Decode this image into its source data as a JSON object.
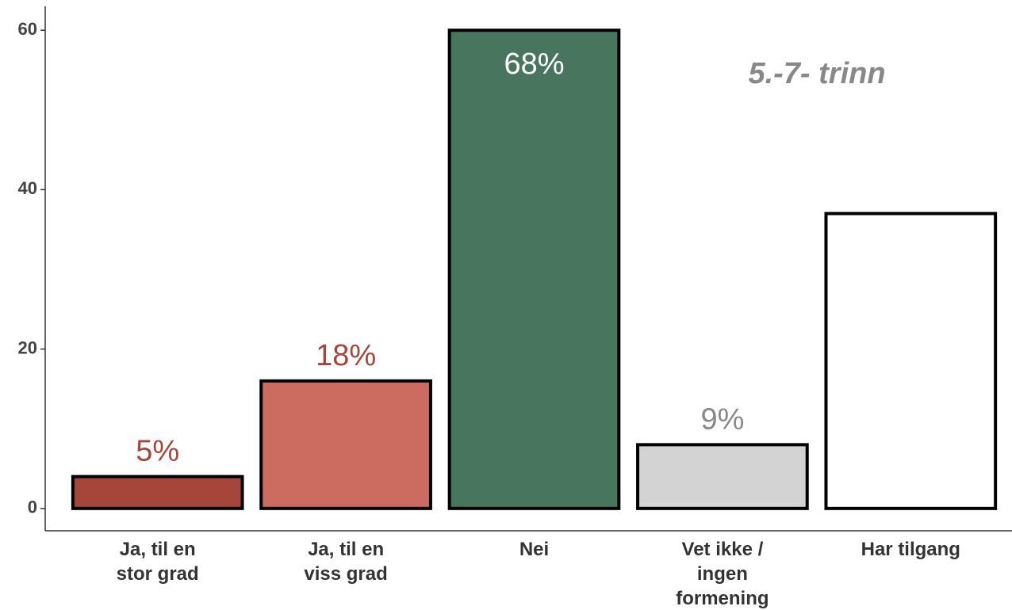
{
  "chart_data": {
    "type": "bar",
    "annotation": "5.-7- trinn",
    "categories": [
      "Ja, til en\nstor grad",
      "Ja, til en\nviss grad",
      "Nei",
      "Vet ikke /\ningen\nformening",
      "Har tilgang"
    ],
    "values": [
      4,
      16,
      60,
      8,
      37
    ],
    "colors": [
      "#a6453a",
      "#cc6b60",
      "#48755e",
      "#d3d3d3",
      "#ffffff"
    ],
    "bar_labels": [
      "5%",
      "18%",
      "68%",
      "9%",
      null
    ],
    "bar_label_colors": [
      "#a6453a",
      "#a6453a",
      "#ffffff",
      "#888888",
      null
    ],
    "ylim": [
      -2.8,
      63
    ],
    "yticks": [
      0,
      20,
      40,
      60
    ],
    "grid": false
  }
}
